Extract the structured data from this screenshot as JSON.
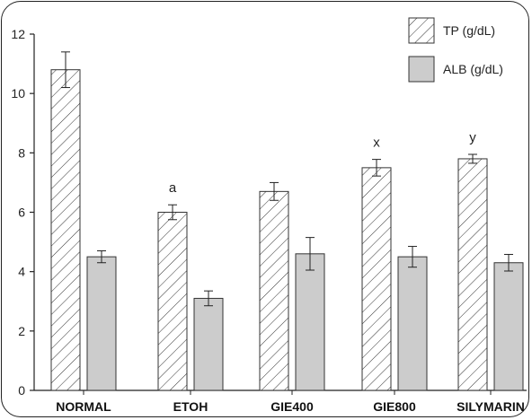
{
  "chart_data": {
    "type": "bar",
    "categories": [
      "NORMAL",
      "ETOH",
      "GIE400",
      "GIE800",
      "SILYMARIN"
    ],
    "series": [
      {
        "name": "TP (g/dL)",
        "values": [
          10.8,
          6.0,
          6.7,
          7.5,
          7.8
        ],
        "errors": [
          0.6,
          0.25,
          0.3,
          0.28,
          0.15
        ],
        "pattern": "hatch",
        "color": "#ffffff"
      },
      {
        "name": "ALB (g/dL)",
        "values": [
          4.5,
          3.1,
          4.6,
          4.5,
          4.3
        ],
        "errors": [
          0.2,
          0.25,
          0.55,
          0.35,
          0.28
        ],
        "pattern": "solid",
        "color": "#cccccc"
      }
    ],
    "annotations": [
      {
        "category": "ETOH",
        "series": 0,
        "text": "a"
      },
      {
        "category": "GIE800",
        "series": 0,
        "text": "x"
      },
      {
        "category": "SILYMARIN",
        "series": 0,
        "text": "y"
      }
    ],
    "ylim": [
      0,
      12
    ],
    "yticks": [
      0,
      2,
      4,
      6,
      8,
      10,
      12
    ],
    "grid": false,
    "legend": "top-right",
    "title": "",
    "xlabel": "",
    "ylabel": ""
  }
}
